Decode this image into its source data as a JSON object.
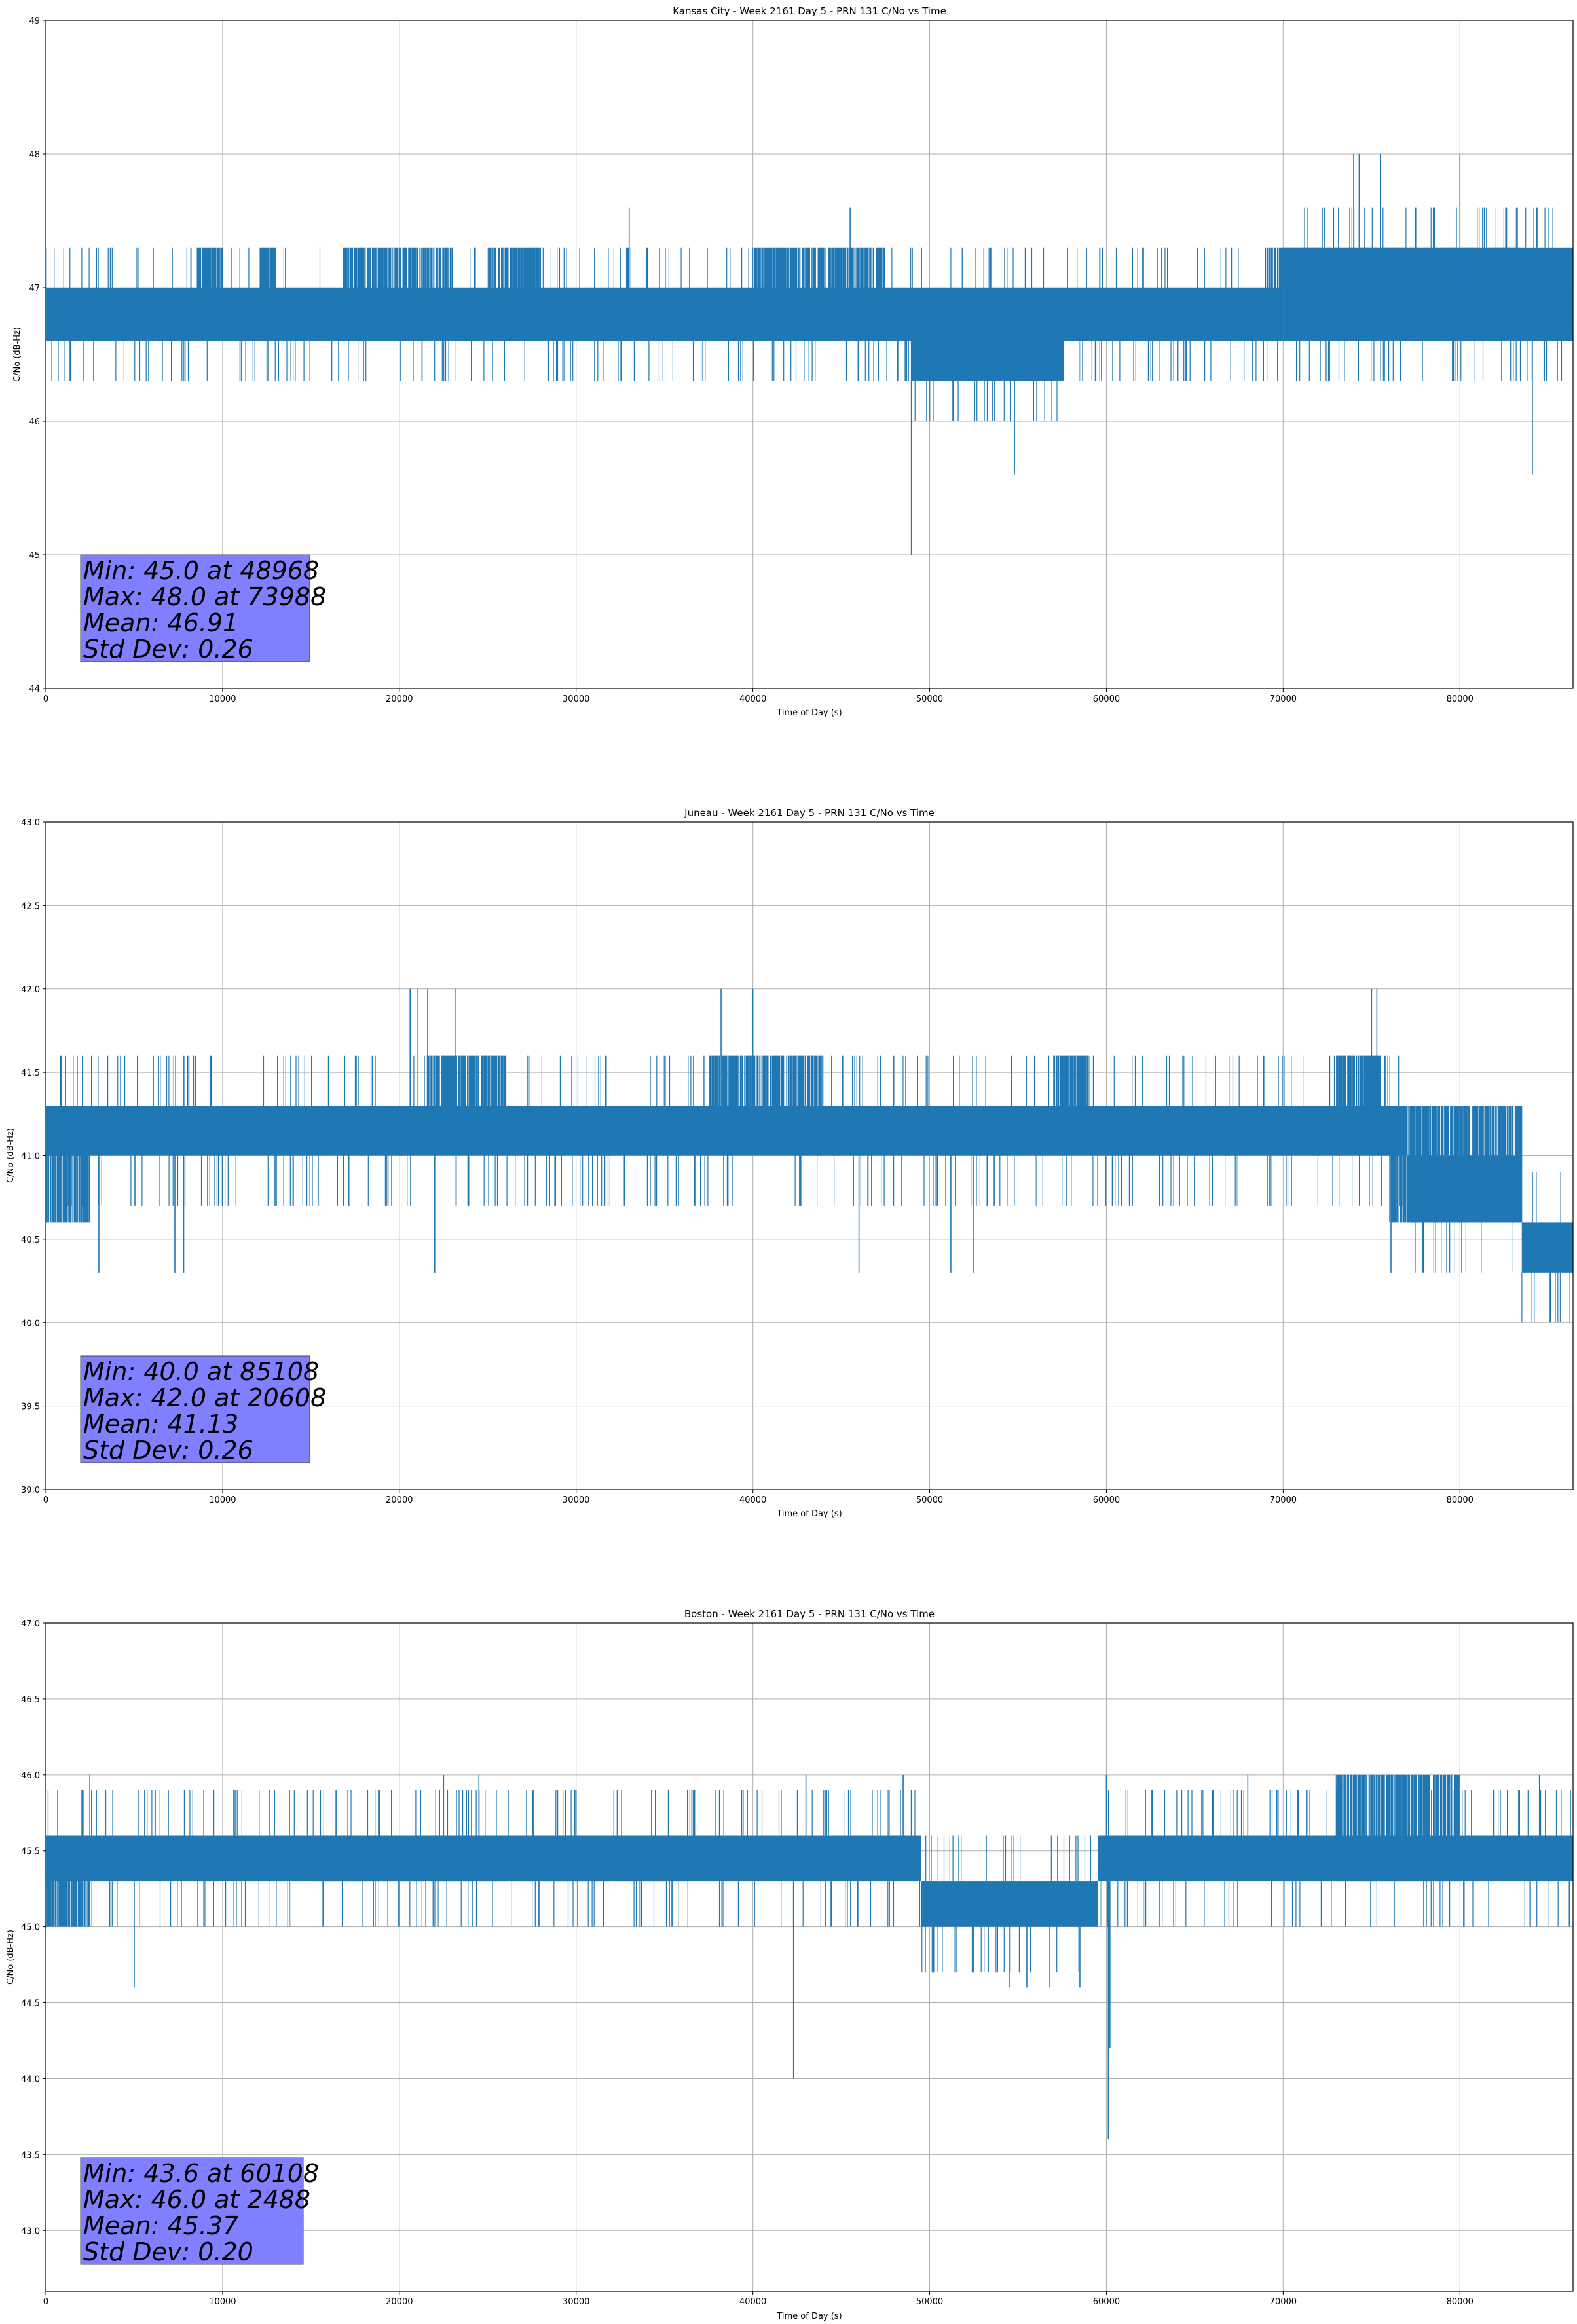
{
  "chart_data": [
    {
      "type": "line",
      "title": "Kansas City - Week 2161 Day 5 - PRN 131 C/No vs Time",
      "xlabel": "Time of Day (s)",
      "ylabel": "C/No (dB-Hz)",
      "xlim": [
        0,
        86400
      ],
      "ylim": [
        44,
        49
      ],
      "xticks": [
        0,
        10000,
        20000,
        30000,
        40000,
        50000,
        60000,
        70000,
        80000
      ],
      "xtick_labels": [
        "0",
        "10000",
        "20000",
        "30000",
        "40000",
        "50000",
        "60000",
        "70000",
        "80000"
      ],
      "yticks": [
        44,
        45,
        46,
        47,
        48,
        49
      ],
      "ytick_labels": [
        "44",
        "45",
        "46",
        "47",
        "48",
        "49"
      ],
      "grid": true,
      "color": "#1f77b4",
      "series": [
        {
          "name": "C/No",
          "bands": [
            {
              "x0": 0,
              "x1": 48968,
              "lo": 46.6,
              "hi": 47.0
            },
            {
              "x0": 48968,
              "x1": 57600,
              "lo": 46.3,
              "hi": 47.0
            },
            {
              "x0": 57600,
              "x1": 70000,
              "lo": 46.6,
              "hi": 47.0
            },
            {
              "x0": 70000,
              "x1": 86400,
              "lo": 46.6,
              "hi": 47.3
            }
          ],
          "dense": [
            {
              "x0": 8500,
              "x1": 10000,
              "lo": 46.6,
              "hi": 47.3
            },
            {
              "x0": 12000,
              "x1": 13000,
              "lo": 46.6,
              "hi": 47.3
            },
            {
              "x0": 17000,
              "x1": 23000,
              "lo": 47.0,
              "hi": 47.3
            },
            {
              "x0": 25000,
              "x1": 28000,
              "lo": 47.0,
              "hi": 47.3
            },
            {
              "x0": 40000,
              "x1": 47500,
              "lo": 47.0,
              "hi": 47.3
            },
            {
              "x0": 47500,
              "x1": 51500,
              "lo": 46.6,
              "hi": 47.0
            },
            {
              "x0": 52000,
              "x1": 57500,
              "lo": 46.3,
              "hi": 46.6
            },
            {
              "x0": 69000,
              "x1": 83500,
              "lo": 47.0,
              "hi": 47.3
            },
            {
              "x0": 84000,
              "x1": 86400,
              "lo": 46.6,
              "hi": 47.0
            }
          ],
          "spikes": [
            [
              48968,
              45.0
            ],
            [
              54800,
              45.6
            ],
            [
              84100,
              45.6
            ],
            [
              73988,
              48.0
            ],
            [
              74300,
              48.0
            ],
            [
              75500,
              48.0
            ],
            [
              80000,
              48.0
            ],
            [
              33000,
              47.6
            ],
            [
              45500,
              47.6
            ],
            [
              74000,
              47.6
            ],
            [
              77500,
              47.6
            ],
            [
              78500,
              47.6
            ],
            [
              79800,
              47.6
            ]
          ]
        }
      ],
      "stats": [
        "Min: 45.0 at 48968",
        "Max: 48.0 at 73988",
        "Mean: 46.91",
        "Std Dev: 0.26"
      ]
    },
    {
      "type": "line",
      "title": "Juneau - Week 2161 Day 5 - PRN 131 C/No vs Time",
      "xlabel": "Time of Day (s)",
      "ylabel": "C/No (dB-Hz)",
      "xlim": [
        0,
        86400
      ],
      "ylim": [
        39.0,
        43.0
      ],
      "xticks": [
        0,
        10000,
        20000,
        30000,
        40000,
        50000,
        60000,
        70000,
        80000
      ],
      "xtick_labels": [
        "0",
        "10000",
        "20000",
        "30000",
        "40000",
        "50000",
        "60000",
        "70000",
        "80000"
      ],
      "yticks": [
        39.0,
        39.5,
        40.0,
        40.5,
        41.0,
        41.5,
        42.0,
        42.5,
        43.0
      ],
      "ytick_labels": [
        "39.0",
        "39.5",
        "40.0",
        "40.5",
        "41.0",
        "41.5",
        "42.0",
        "42.5",
        "43.0"
      ],
      "grid": true,
      "color": "#1f77b4",
      "series": [
        {
          "name": "C/No",
          "bands": [
            {
              "x0": 0,
              "x1": 77000,
              "lo": 41.0,
              "hi": 41.3
            },
            {
              "x0": 77000,
              "x1": 83500,
              "lo": 40.6,
              "hi": 41.0
            },
            {
              "x0": 83500,
              "x1": 86400,
              "lo": 40.3,
              "hi": 40.6
            }
          ],
          "dense": [
            {
              "x0": 0,
              "x1": 2500,
              "lo": 40.6,
              "hi": 41.3
            },
            {
              "x0": 21500,
              "x1": 26000,
              "lo": 41.3,
              "hi": 41.6
            },
            {
              "x0": 37500,
              "x1": 44000,
              "lo": 41.3,
              "hi": 41.6
            },
            {
              "x0": 57000,
              "x1": 59000,
              "lo": 41.3,
              "hi": 41.6
            },
            {
              "x0": 73000,
              "x1": 75500,
              "lo": 41.3,
              "hi": 41.6
            },
            {
              "x0": 76000,
              "x1": 83500,
              "lo": 40.6,
              "hi": 41.3
            }
          ],
          "spikes": [
            [
              85108,
              40.0
            ],
            [
              85600,
              40.0
            ],
            [
              3000,
              40.3
            ],
            [
              7300,
              40.3
            ],
            [
              7800,
              40.3
            ],
            [
              22000,
              40.3
            ],
            [
              46000,
              40.3
            ],
            [
              51200,
              40.3
            ],
            [
              52500,
              40.3
            ],
            [
              76100,
              40.3
            ],
            [
              20608,
              42.0
            ],
            [
              21000,
              42.0
            ],
            [
              21600,
              42.0
            ],
            [
              23200,
              42.0
            ],
            [
              38200,
              42.0
            ],
            [
              40000,
              42.0
            ],
            [
              75000,
              42.0
            ],
            [
              75300,
              42.0
            ]
          ]
        }
      ],
      "stats": [
        "Min: 40.0 at 85108",
        "Max: 42.0 at 20608",
        "Mean: 41.13",
        "Std Dev: 0.26"
      ]
    },
    {
      "type": "line",
      "title": "Boston - Week 2161 Day 5 - PRN 131 C/No vs Time",
      "xlabel": "Time of Day (s)",
      "ylabel": "C/No (dB-Hz)",
      "xlim": [
        0,
        86400
      ],
      "ylim": [
        42.6,
        47.0
      ],
      "xticks": [
        0,
        10000,
        20000,
        30000,
        40000,
        50000,
        60000,
        70000,
        80000
      ],
      "xtick_labels": [
        "0",
        "10000",
        "20000",
        "30000",
        "40000",
        "50000",
        "60000",
        "70000",
        "80000"
      ],
      "yticks": [
        43.0,
        43.5,
        44.0,
        44.5,
        45.0,
        45.5,
        46.0,
        46.5,
        47.0
      ],
      "ytick_labels": [
        "43.0",
        "43.5",
        "44.0",
        "44.5",
        "45.0",
        "45.5",
        "46.0",
        "46.5",
        "47.0"
      ],
      "grid": true,
      "color": "#1f77b4",
      "series": [
        {
          "name": "C/No",
          "bands": [
            {
              "x0": 0,
              "x1": 49500,
              "lo": 45.3,
              "hi": 45.6
            },
            {
              "x0": 49500,
              "x1": 59500,
              "lo": 45.0,
              "hi": 45.3
            },
            {
              "x0": 59500,
              "x1": 86400,
              "lo": 45.3,
              "hi": 45.6
            }
          ],
          "dense": [
            {
              "x0": 0,
              "x1": 2500,
              "lo": 45.0,
              "hi": 45.6
            },
            {
              "x0": 15000,
              "x1": 22000,
              "lo": 45.3,
              "hi": 45.6
            },
            {
              "x0": 22000,
              "x1": 36000,
              "lo": 45.3,
              "hi": 45.6
            },
            {
              "x0": 73000,
              "x1": 80000,
              "lo": 45.3,
              "hi": 46.0
            }
          ],
          "spikes": [
            [
              60108,
              43.6
            ],
            [
              60200,
              44.2
            ],
            [
              42300,
              44.0
            ],
            [
              5000,
              44.6
            ],
            [
              54500,
              44.6
            ],
            [
              55500,
              44.6
            ],
            [
              56800,
              44.6
            ],
            [
              58500,
              44.6
            ],
            [
              2488,
              46.0
            ],
            [
              22500,
              46.0
            ],
            [
              24500,
              46.0
            ],
            [
              43000,
              46.0
            ],
            [
              48500,
              46.0
            ],
            [
              60000,
              46.0
            ],
            [
              68000,
              46.0
            ],
            [
              84500,
              46.0
            ]
          ]
        }
      ],
      "stats": [
        "Min: 43.6 at 60108",
        "Max: 46.0 at 2488",
        "Mean: 45.37",
        "Std Dev: 0.20"
      ]
    }
  ]
}
